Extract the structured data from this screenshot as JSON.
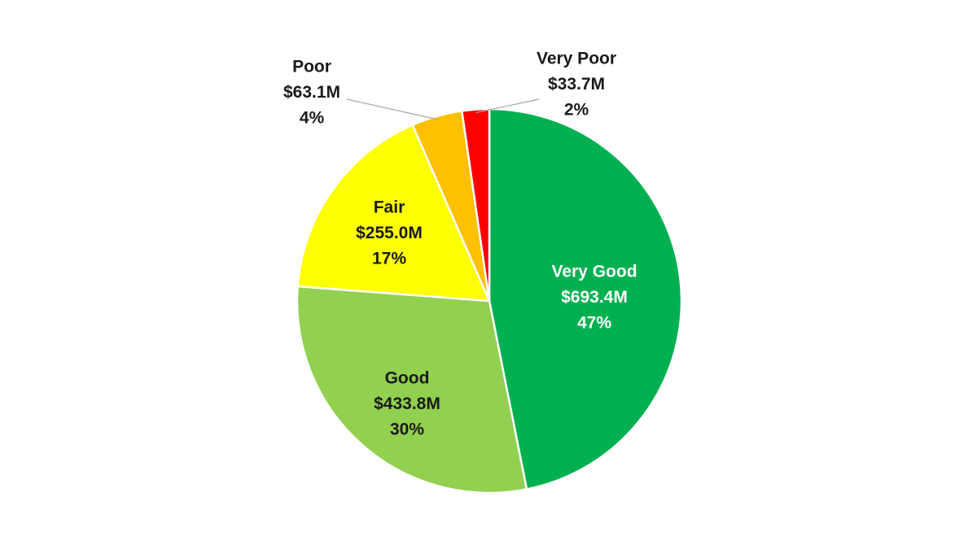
{
  "chart_data": {
    "type": "pie",
    "title": "",
    "categories": [
      "Very Good",
      "Good",
      "Fair",
      "Poor",
      "Very Poor"
    ],
    "values": [
      693.4,
      433.8,
      255.0,
      63.1,
      33.7
    ],
    "value_labels": [
      "$693.4M",
      "$433.8M",
      "$255.0M",
      "$63.1M",
      "$33.7M"
    ],
    "percent_labels": [
      "47%",
      "30%",
      "17%",
      "4%",
      "2%"
    ],
    "colors": [
      "#00b050",
      "#92d050",
      "#ffff00",
      "#ffc000",
      "#ff0000"
    ],
    "label_colors": [
      "#ffffff",
      "#1a1a1a",
      "#1a1a1a",
      "#1a1a1a",
      "#1a1a1a"
    ],
    "start_angle_deg": 0,
    "direction": "clockwise",
    "legend": "none"
  }
}
